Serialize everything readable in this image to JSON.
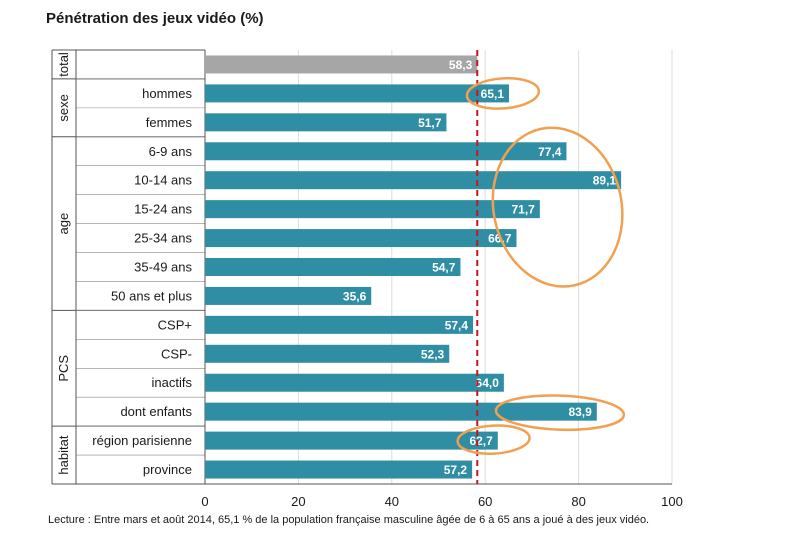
{
  "title": "Pénétration des jeux vidéo (%)",
  "footnote": "Lecture : Entre mars et août 2014, 65,1 % de la population française masculine âgée de 6 à 65 ans a joué à des jeux vidéo.",
  "colors": {
    "bar": "#2f8ea4",
    "total_bar": "#a6a6a6",
    "reference_line": "#c0181e",
    "highlight": "#f0a050",
    "grid": "#dcdcdc"
  },
  "chart_data": {
    "type": "bar",
    "orientation": "horizontal",
    "title": "Pénétration des jeux vidéo (%)",
    "xlim": [
      0,
      100
    ],
    "xticks": [
      0,
      20,
      40,
      60,
      80,
      100
    ],
    "grid": true,
    "reference_line": {
      "value": 58.3,
      "style": "dashed"
    },
    "groups": [
      {
        "name": "total",
        "start": 0,
        "end": 0
      },
      {
        "name": "sexe",
        "start": 1,
        "end": 2
      },
      {
        "name": "age",
        "start": 3,
        "end": 8
      },
      {
        "name": "PCS",
        "start": 9,
        "end": 12
      },
      {
        "name": "habitat",
        "start": 13,
        "end": 14
      }
    ],
    "categories": [
      "",
      "hommes",
      "femmes",
      "6-9 ans",
      "10-14 ans",
      "15-24 ans",
      "25-34 ans",
      "35-49 ans",
      "50 ans et plus",
      "CSP+",
      "CSP-",
      "inactifs",
      "dont enfants",
      "région parisienne",
      "province"
    ],
    "values": [
      58.3,
      65.1,
      51.7,
      77.4,
      89.1,
      71.7,
      66.7,
      54.7,
      35.6,
      57.4,
      52.3,
      64.0,
      83.9,
      62.7,
      57.2
    ],
    "value_labels": [
      "58,3",
      "65,1",
      "51,7",
      "77,4",
      "89,1",
      "71,7",
      "66,7",
      "54,7",
      "35,6",
      "57,4",
      "52,3",
      "64,0",
      "83,9",
      "62,7",
      "57,2"
    ],
    "highlighted": [
      "hommes",
      "6-9 ans",
      "10-14 ans",
      "15-24 ans",
      "25-34 ans",
      "dont enfants",
      "région parisienne"
    ]
  }
}
